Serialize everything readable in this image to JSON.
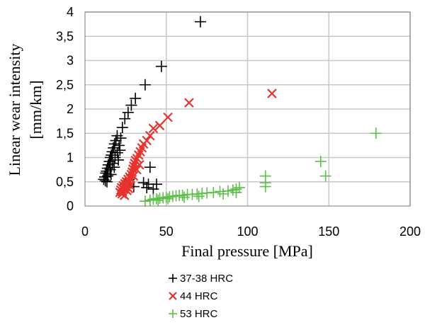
{
  "chart_data": {
    "type": "scatter",
    "title": "",
    "xlabel": "Final pressure [MPa]",
    "ylabel_line1": "Linear wear intensity",
    "ylabel_line2": "[mm/km]",
    "xlim": [
      0,
      200
    ],
    "ylim": [
      0,
      4
    ],
    "x_ticks": [
      "0",
      "50",
      "100",
      "150",
      "200"
    ],
    "y_ticks": [
      "0",
      "0,5",
      "1",
      "1,5",
      "2",
      "2,5",
      "3",
      "3,5",
      "4"
    ],
    "grid": true,
    "legend_position": "bottom",
    "series": [
      {
        "name": "37-38 HRC",
        "marker": "plus",
        "color": "#000000",
        "points": [
          [
            11.5,
            0.55
          ],
          [
            12.2,
            0.6
          ],
          [
            12.8,
            0.68
          ],
          [
            13.2,
            0.72
          ],
          [
            13.8,
            0.78
          ],
          [
            14.3,
            0.85
          ],
          [
            15.0,
            0.92
          ],
          [
            15.6,
            1.0
          ],
          [
            16.2,
            1.05
          ],
          [
            16.8,
            1.12
          ],
          [
            17.5,
            1.2
          ],
          [
            18.2,
            1.28
          ],
          [
            19.0,
            1.35
          ],
          [
            19.8,
            1.45
          ],
          [
            12.5,
            0.52
          ],
          [
            14.0,
            0.62
          ],
          [
            15.5,
            0.75
          ],
          [
            17.0,
            0.88
          ],
          [
            18.5,
            1.0
          ],
          [
            20.0,
            1.1
          ],
          [
            21.0,
            1.25
          ],
          [
            22.0,
            1.4
          ],
          [
            23.0,
            1.62
          ],
          [
            24.5,
            1.8
          ],
          [
            26.5,
            1.93
          ],
          [
            28.5,
            2.08
          ],
          [
            31.0,
            2.22
          ],
          [
            37.0,
            2.5
          ],
          [
            47.0,
            2.88
          ],
          [
            71.0,
            3.8
          ],
          [
            13.5,
            0.5
          ],
          [
            16.0,
            0.65
          ],
          [
            18.0,
            0.8
          ],
          [
            20.5,
            0.95
          ],
          [
            21.5,
            1.15
          ],
          [
            25.0,
            0.45
          ],
          [
            27.0,
            0.55
          ],
          [
            36.0,
            0.48
          ],
          [
            39.0,
            0.45
          ],
          [
            40.0,
            0.8
          ],
          [
            44.0,
            0.45
          ],
          [
            42.0,
            0.35
          ],
          [
            38.0,
            0.38
          ],
          [
            30.0,
            0.4
          ]
        ]
      },
      {
        "name": "44 HRC",
        "marker": "cross",
        "color": "#e8322e",
        "points": [
          [
            21.5,
            0.28
          ],
          [
            22.0,
            0.33
          ],
          [
            22.5,
            0.38
          ],
          [
            23.0,
            0.3
          ],
          [
            23.5,
            0.42
          ],
          [
            24.0,
            0.35
          ],
          [
            24.5,
            0.46
          ],
          [
            25.0,
            0.4
          ],
          [
            25.5,
            0.5
          ],
          [
            26.0,
            0.45
          ],
          [
            26.5,
            0.55
          ],
          [
            27.0,
            0.5
          ],
          [
            27.5,
            0.6
          ],
          [
            28.0,
            0.56
          ],
          [
            28.5,
            0.65
          ],
          [
            29.0,
            0.7
          ],
          [
            29.5,
            0.76
          ],
          [
            30.0,
            0.82
          ],
          [
            30.5,
            0.88
          ],
          [
            31.0,
            0.94
          ],
          [
            32.0,
            0.98
          ],
          [
            33.0,
            1.05
          ],
          [
            34.0,
            1.12
          ],
          [
            35.0,
            1.2
          ],
          [
            36.0,
            1.28
          ],
          [
            38.0,
            1.35
          ],
          [
            40.0,
            1.45
          ],
          [
            42.0,
            1.6
          ],
          [
            46.0,
            1.66
          ],
          [
            51.0,
            1.83
          ],
          [
            64.0,
            2.13
          ],
          [
            115.0,
            2.32
          ],
          [
            22.8,
            0.25
          ],
          [
            25.8,
            0.32
          ],
          [
            27.8,
            0.42
          ],
          [
            24.3,
            0.22
          ],
          [
            26.8,
            0.36
          ],
          [
            29.8,
            0.62
          ],
          [
            31.8,
            0.75
          ],
          [
            33.5,
            0.85
          ]
        ]
      },
      {
        "name": "53 HRC",
        "marker": "plus",
        "color": "#5cbf4a",
        "points": [
          [
            37.0,
            0.1
          ],
          [
            40.0,
            0.12
          ],
          [
            42.0,
            0.14
          ],
          [
            44.0,
            0.15
          ],
          [
            46.0,
            0.16
          ],
          [
            48.0,
            0.17
          ],
          [
            50.0,
            0.18
          ],
          [
            52.0,
            0.19
          ],
          [
            54.0,
            0.2
          ],
          [
            56.0,
            0.21
          ],
          [
            58.0,
            0.22
          ],
          [
            60.0,
            0.22
          ],
          [
            63.0,
            0.24
          ],
          [
            66.0,
            0.24
          ],
          [
            69.0,
            0.25
          ],
          [
            72.0,
            0.26
          ],
          [
            75.0,
            0.27
          ],
          [
            79.0,
            0.28
          ],
          [
            83.0,
            0.3
          ],
          [
            88.0,
            0.31
          ],
          [
            91.0,
            0.33
          ],
          [
            93.0,
            0.35
          ],
          [
            95.0,
            0.38
          ],
          [
            111.0,
            0.4
          ],
          [
            111.0,
            0.48
          ],
          [
            111.0,
            0.62
          ],
          [
            145.0,
            0.92
          ],
          [
            148.0,
            0.62
          ],
          [
            179.0,
            1.5
          ],
          [
            45.0,
            0.12
          ],
          [
            51.0,
            0.15
          ],
          [
            61.0,
            0.18
          ],
          [
            70.0,
            0.2
          ],
          [
            85.0,
            0.25
          ],
          [
            93.0,
            0.28
          ]
        ]
      }
    ]
  }
}
